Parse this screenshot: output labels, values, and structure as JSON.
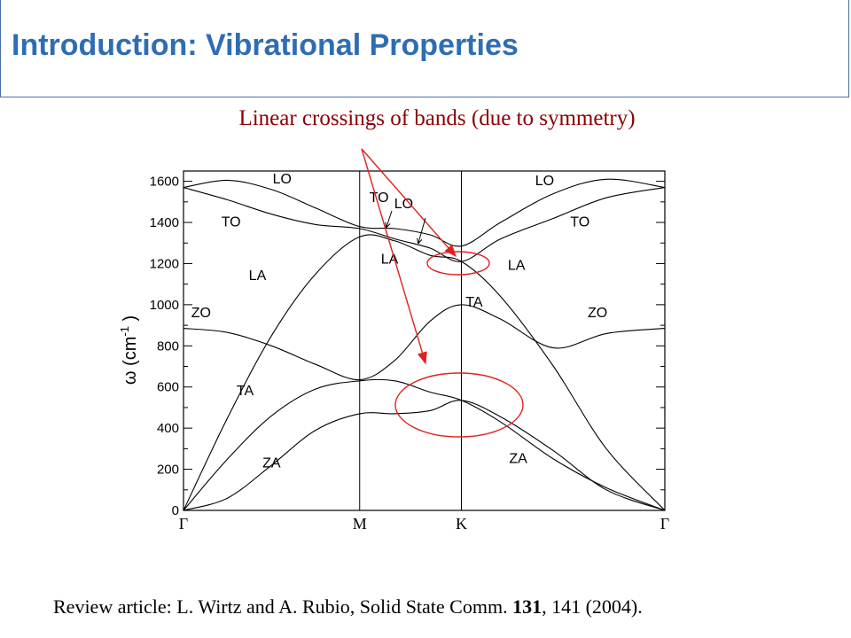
{
  "header": {
    "title": "Introduction: Vibrational Properties"
  },
  "callout": {
    "text": "Linear crossings of bands  (due to symmetry)"
  },
  "citation": {
    "prefix": "Review article: L. Wirtz and A. Rubio, Solid State Comm. ",
    "volume": "131",
    "suffix": ", 141 (2004)."
  },
  "colors": {
    "title": "#2e6db4",
    "callout": "#8b0000",
    "annotation": "#e02020",
    "curve": "#000000"
  },
  "chart_data": {
    "type": "line",
    "ylabel": "ω (cm",
    "ylabel_sup": "-1",
    "ylabel_close": ")",
    "ylim": [
      0,
      1650
    ],
    "yticks": [
      0,
      200,
      400,
      600,
      800,
      1000,
      1200,
      1400,
      1600
    ],
    "grid": false,
    "x_symmetry_points": [
      {
        "label": "Γ",
        "pos": 0
      },
      {
        "label": "M",
        "pos": 1
      },
      {
        "label": "K",
        "pos": 1.5774
      },
      {
        "label": "Γ",
        "pos": 2.7321
      }
    ],
    "series": [
      {
        "name": "ZA",
        "x": [
          0,
          0.25,
          0.5,
          0.75,
          1.0,
          1.2,
          1.4,
          1.5774,
          1.8,
          2.1,
          2.4,
          2.7321
        ],
        "y": [
          0,
          60,
          220,
          390,
          470,
          470,
          485,
          535,
          455,
          290,
          100,
          0
        ]
      },
      {
        "name": "TA",
        "x": [
          0,
          0.25,
          0.5,
          0.75,
          1.0,
          1.2,
          1.4,
          1.5774,
          1.8,
          2.1,
          2.4,
          2.7321
        ],
        "y": [
          0,
          250,
          460,
          590,
          630,
          630,
          575,
          535,
          430,
          250,
          110,
          0
        ]
      },
      {
        "name": "LA",
        "x": [
          0,
          0.25,
          0.5,
          0.75,
          1.0,
          1.2,
          1.4,
          1.5774,
          1.8,
          2.1,
          2.4,
          2.7321
        ],
        "y": [
          0,
          450,
          850,
          1150,
          1330,
          1310,
          1240,
          1210,
          1040,
          700,
          300,
          0
        ]
      },
      {
        "name": "ZO",
        "x": [
          0,
          0.25,
          0.5,
          0.75,
          1.0,
          1.2,
          1.4,
          1.5774,
          1.8,
          2.1,
          2.4,
          2.7321
        ],
        "y": [
          885,
          865,
          800,
          710,
          635,
          730,
          920,
          1000,
          930,
          790,
          860,
          885
        ]
      },
      {
        "name": "TO",
        "x": [
          0,
          0.25,
          0.5,
          0.75,
          1.0,
          1.2,
          1.4,
          1.5774,
          1.8,
          2.1,
          2.4,
          2.7321
        ],
        "y": [
          1570,
          1510,
          1440,
          1390,
          1370,
          1320,
          1275,
          1210,
          1320,
          1420,
          1520,
          1570
        ]
      },
      {
        "name": "LO",
        "x": [
          0,
          0.25,
          0.5,
          0.75,
          1.0,
          1.2,
          1.4,
          1.5774,
          1.8,
          2.1,
          2.4,
          2.7321
        ],
        "y": [
          1570,
          1605,
          1560,
          1470,
          1380,
          1370,
          1340,
          1285,
          1400,
          1540,
          1610,
          1570
        ]
      }
    ],
    "band_labels": [
      {
        "text": "LO",
        "x": 0.56,
        "y": 1590
      },
      {
        "text": "TO",
        "x": 0.27,
        "y": 1380
      },
      {
        "text": "LA",
        "x": 0.42,
        "y": 1120
      },
      {
        "text": "ZO",
        "x": 0.1,
        "y": 940
      },
      {
        "text": "TA",
        "x": 0.35,
        "y": 560
      },
      {
        "text": "ZA",
        "x": 0.5,
        "y": 210
      },
      {
        "text": "TO",
        "x": 1.11,
        "y": 1500
      },
      {
        "text": "LO",
        "x": 1.25,
        "y": 1470
      },
      {
        "text": "LA",
        "x": 1.17,
        "y": 1200
      },
      {
        "text": "TA",
        "x": 1.65,
        "y": 990
      },
      {
        "text": "LO",
        "x": 2.05,
        "y": 1580
      },
      {
        "text": "TO",
        "x": 2.25,
        "y": 1380
      },
      {
        "text": "LA",
        "x": 1.89,
        "y": 1170
      },
      {
        "text": "ZO",
        "x": 2.35,
        "y": 940
      },
      {
        "text": "ZA",
        "x": 1.9,
        "y": 230
      }
    ]
  }
}
